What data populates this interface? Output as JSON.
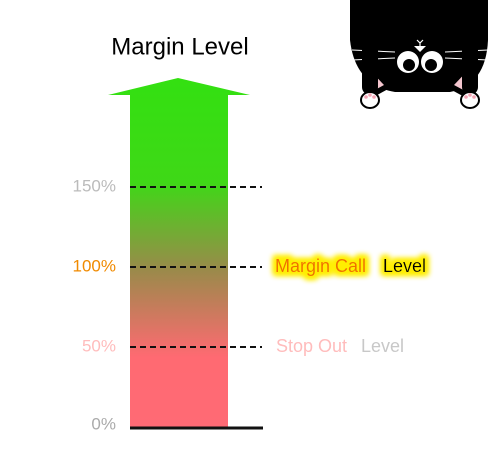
{
  "title": "Margin Level",
  "ticks": [
    "150%",
    "100%",
    "50%",
    "0%"
  ],
  "annotations": [
    {
      "highlight": "Margin Call",
      "rest": "Level"
    },
    {
      "highlight": "Stop Out",
      "rest": "Level"
    }
  ]
}
